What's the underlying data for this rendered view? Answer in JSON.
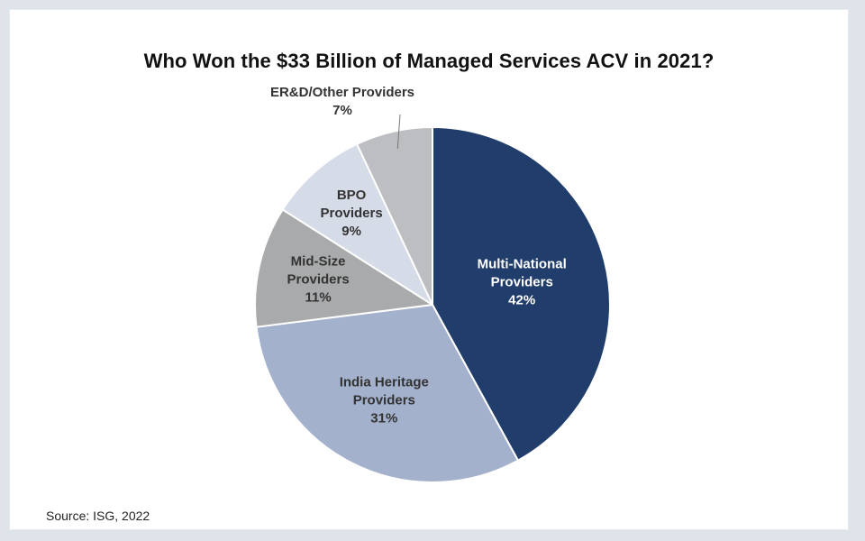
{
  "chart_data": {
    "type": "pie",
    "title": "Who Won the $33 Billion of Managed Services ACV in 2021?",
    "source": "Source: ISG, 2022",
    "slices": [
      {
        "label_lines": [
          "Multi-National",
          "Providers"
        ],
        "pct_label": "42%",
        "value": 42,
        "color": "#213d6b",
        "text_color": "#ffffff"
      },
      {
        "label_lines": [
          "India Heritage",
          "Providers"
        ],
        "pct_label": "31%",
        "value": 31,
        "color": "#a3b1cc",
        "text_color": "#333333"
      },
      {
        "label_lines": [
          "Mid-Size",
          "Providers"
        ],
        "pct_label": "11%",
        "value": 11,
        "color": "#a9aaab",
        "text_color": "#333333"
      },
      {
        "label_lines": [
          "BPO",
          "Providers"
        ],
        "pct_label": "9%",
        "value": 9,
        "color": "#d6dbe8",
        "text_color": "#333333"
      },
      {
        "label_lines": [
          "ER&D/Other Providers"
        ],
        "pct_label": "7%",
        "value": 7,
        "color": "#bcbec1",
        "text_color": "#333333"
      }
    ]
  }
}
